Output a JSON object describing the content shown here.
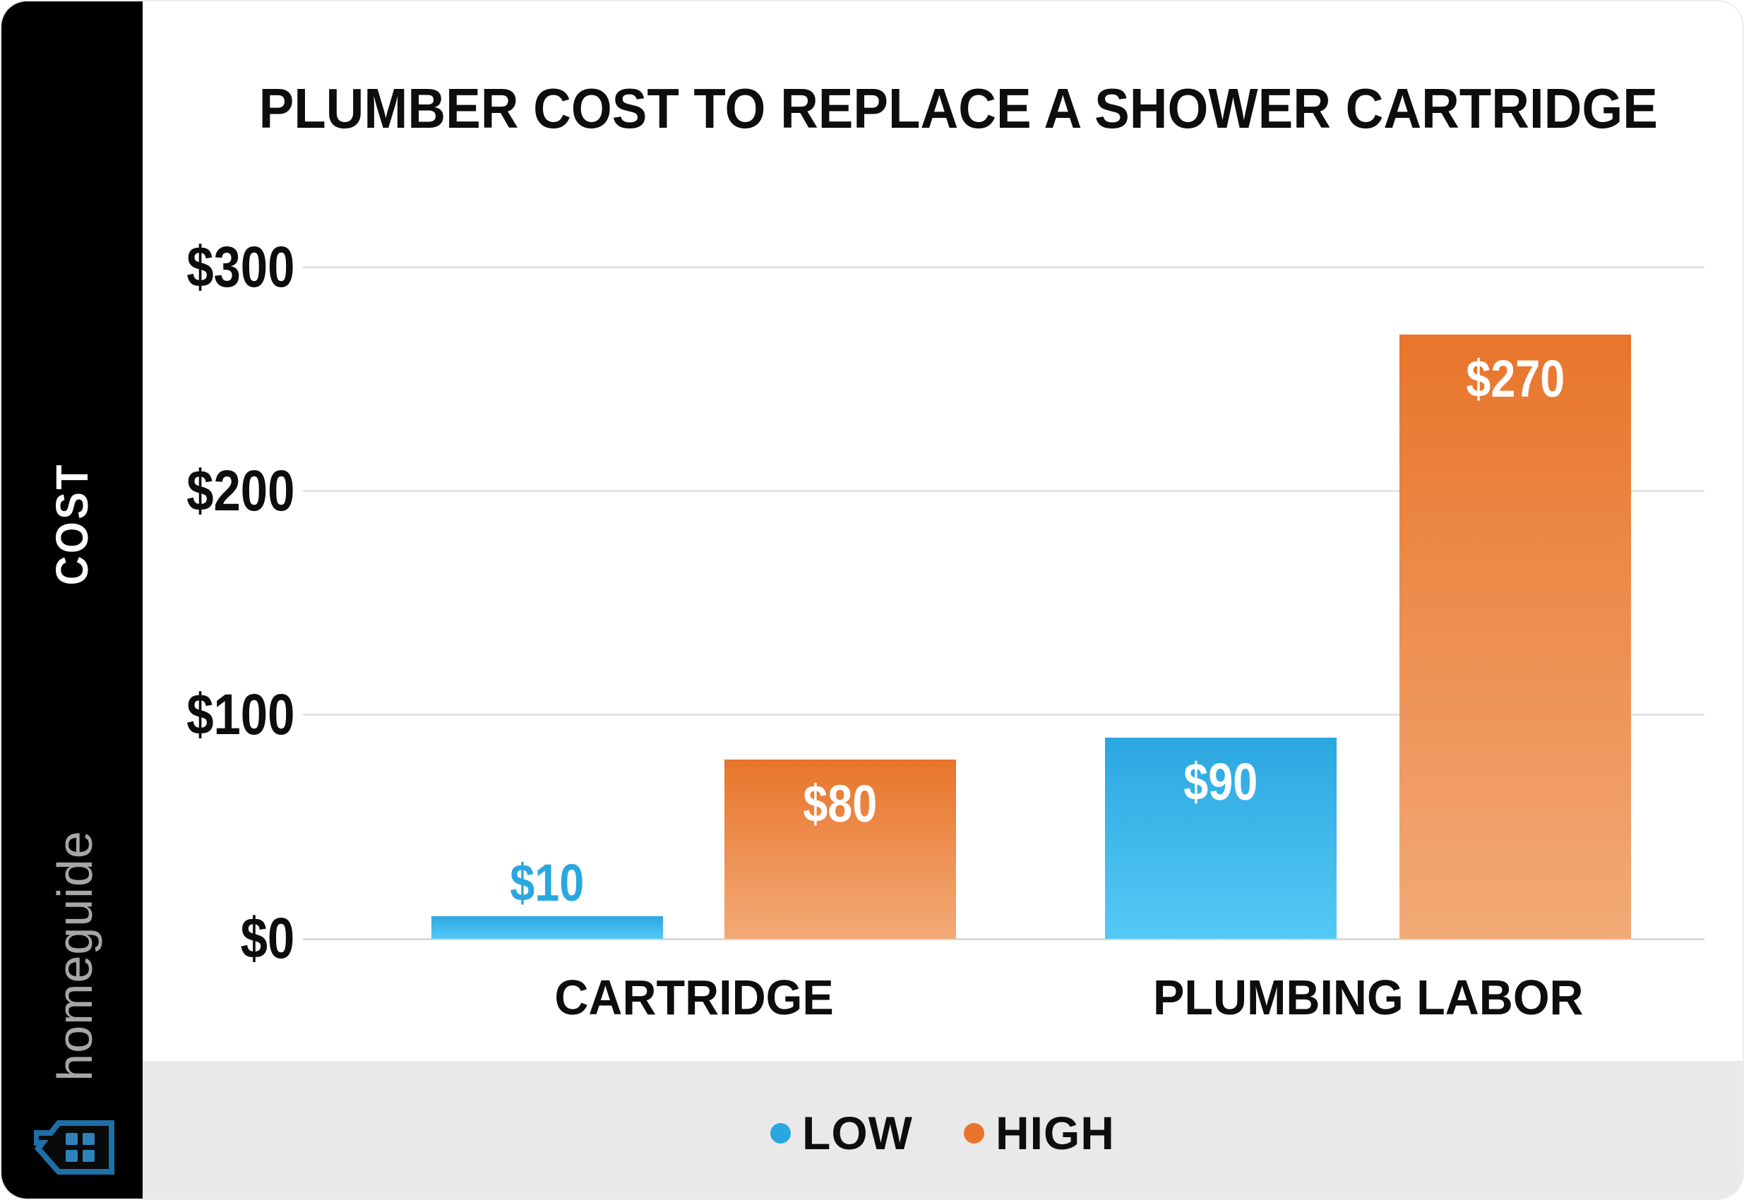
{
  "title": "PLUMBER COST TO REPLACE A SHOWER CARTRIDGE",
  "sidebar": {
    "cost_label": "COST",
    "brand": "homeguide",
    "icon": "homeguide-house-icon",
    "background": "#000000",
    "brand_color": "#a6a6a6",
    "house_outline_color": "#1F6FA8",
    "house_window_color": "#2E82B8"
  },
  "chart_data": {
    "type": "bar",
    "title": "PLUMBER COST TO REPLACE A SHOWER CARTRIDGE",
    "categories": [
      "CARTRIDGE",
      "PLUMBING LABOR"
    ],
    "series": [
      {
        "name": "LOW",
        "values": [
          10,
          90
        ]
      },
      {
        "name": "HIGH",
        "values": [
          80,
          270
        ]
      }
    ],
    "value_labels": [
      [
        "$10",
        "$90"
      ],
      [
        "$80",
        "$270"
      ]
    ],
    "label_placement": [
      [
        "above",
        "inside"
      ],
      [
        "inside",
        "inside"
      ]
    ],
    "ylabel": "COST",
    "xlabel": "",
    "ylim": [
      0,
      300
    ],
    "y_ticks": [
      {
        "label": "$300",
        "value": 300
      },
      {
        "label": "$200",
        "value": 200
      },
      {
        "label": "$100",
        "value": 100
      },
      {
        "label": "$0",
        "value": 0
      }
    ],
    "grid": "horizontal",
    "legend_position": "bottom",
    "colors": {
      "low_top": "#2BA7E0",
      "low_bottom": "#55C9F5",
      "low_label": "#29A8E0",
      "high_top": "#E8752B",
      "high_bottom": "#F2AA76",
      "inside_label": "#ffffff",
      "gridline": "#e3e3e3",
      "footer_band": "#e9e9e9"
    }
  },
  "legend": {
    "items": [
      {
        "label": "LOW",
        "color": "#29A8E0"
      },
      {
        "label": "HIGH",
        "color": "#E8752B"
      }
    ]
  }
}
